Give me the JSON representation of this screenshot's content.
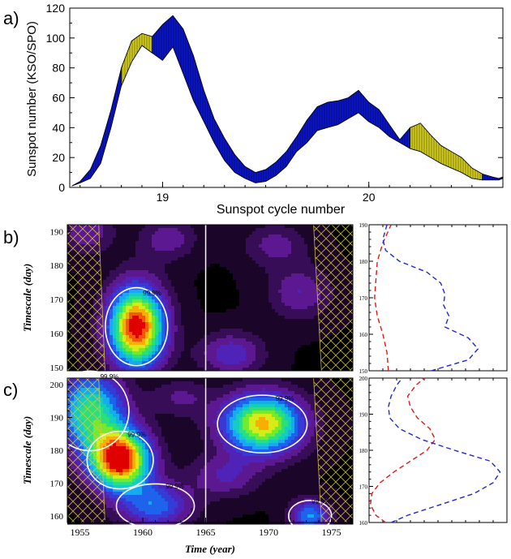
{
  "chart_data": [
    {
      "type": "area",
      "panel_label": "a)",
      "ylabel": "Sunspot number (KSO/SPO)",
      "xlabel": "Sunspot cycle number",
      "xticks": [
        "19",
        "20"
      ],
      "yticks": [
        "0",
        "20",
        "40",
        "60",
        "80",
        "100",
        "120"
      ],
      "ylim": [
        0,
        120
      ],
      "xlim": [
        18.55,
        20.65
      ],
      "colors": {
        "band": "#0a14c8",
        "highlight": "#d2cc1e",
        "outline": "#000000"
      },
      "x": [
        18.56,
        18.6,
        18.65,
        18.7,
        18.75,
        18.8,
        18.85,
        18.9,
        18.95,
        19.0,
        19.05,
        19.1,
        19.15,
        19.2,
        19.25,
        19.3,
        19.35,
        19.4,
        19.45,
        19.5,
        19.55,
        19.6,
        19.65,
        19.7,
        19.75,
        19.8,
        19.85,
        19.9,
        19.95,
        20.0,
        20.05,
        20.1,
        20.15,
        20.2,
        20.25,
        20.3,
        20.35,
        20.4,
        20.45,
        20.5,
        20.55,
        20.6,
        20.63,
        20.65
      ],
      "upper": [
        1,
        4,
        12,
        28,
        52,
        80,
        98,
        103,
        101,
        109,
        115,
        106,
        88,
        65,
        46,
        33,
        22,
        14,
        10,
        12,
        17,
        24,
        34,
        45,
        54,
        57,
        58,
        60,
        65,
        57,
        52,
        42,
        32,
        40,
        43,
        35,
        28,
        24,
        20,
        13,
        9,
        7,
        6,
        7
      ],
      "lower": [
        1,
        3,
        6,
        16,
        40,
        68,
        84,
        95,
        90,
        85,
        94,
        76,
        58,
        44,
        30,
        18,
        10,
        6,
        3,
        4,
        8,
        14,
        24,
        30,
        38,
        40,
        42,
        46,
        50,
        44,
        40,
        34,
        30,
        26,
        24,
        20,
        16,
        13,
        10,
        6,
        5,
        5,
        5,
        6
      ],
      "highlight_ranges": [
        [
          18.8,
          18.95
        ],
        [
          20.2,
          20.55
        ]
      ]
    },
    {
      "type": "heatmap",
      "panel_label": "b)",
      "ylabel": "Timescale (day)",
      "yticks": [
        "150",
        "160",
        "170",
        "180",
        "190"
      ],
      "ylim": [
        149,
        192
      ],
      "xlim": [
        1954.0,
        1976.7
      ],
      "marker_year": 1965,
      "contour_label": "99.9%",
      "blobs": [
        {
          "x": 1959.5,
          "y": 162,
          "sx": 1.6,
          "sy": 8.5,
          "amp": 1.0
        },
        {
          "x": 1967.0,
          "y": 154,
          "sx": 1.8,
          "sy": 4.5,
          "amp": 0.28
        },
        {
          "x": 1972.5,
          "y": 172,
          "sx": 1.8,
          "sy": 5.5,
          "amp": 0.22
        },
        {
          "x": 1955.5,
          "y": 190,
          "sx": 1.5,
          "sy": 4.5,
          "amp": 0.22
        },
        {
          "x": 1962.0,
          "y": 188,
          "sx": 1.6,
          "sy": 4.5,
          "amp": 0.2
        },
        {
          "x": 1970.5,
          "y": 186,
          "sx": 1.8,
          "sy": 4.5,
          "amp": 0.18
        }
      ],
      "side_profile": {
        "ylim": [
          150,
          190
        ],
        "yticks": [
          "150",
          "160",
          "170",
          "180",
          "190"
        ],
        "red_dashed": {
          "y": [
            150,
            155,
            160,
            165,
            170,
            175,
            180,
            185,
            190
          ],
          "x": [
            0.14,
            0.13,
            0.1,
            0.06,
            0.04,
            0.05,
            0.06,
            0.1,
            0.16
          ]
        },
        "blue_dashed": {
          "y": [
            150,
            153,
            156,
            159,
            162,
            165,
            168,
            171,
            174,
            177,
            180,
            183,
            186,
            190
          ],
          "x": [
            0.45,
            0.72,
            0.79,
            0.72,
            0.55,
            0.58,
            0.54,
            0.55,
            0.52,
            0.42,
            0.22,
            0.12,
            0.1,
            0.13
          ]
        }
      }
    },
    {
      "type": "heatmap",
      "panel_label": "c)",
      "ylabel": "Timescale (day)",
      "xlabel": "Time (year)",
      "xticks": [
        "1955",
        "1960",
        "1965",
        "1970",
        "1975"
      ],
      "yticks": [
        "160",
        "170",
        "180",
        "190",
        "200"
      ],
      "ylim": [
        158,
        202
      ],
      "xlim": [
        1954.0,
        1976.7
      ],
      "marker_year": 1965,
      "contour_label": "99.9%",
      "blobs": [
        {
          "x": 1958.2,
          "y": 177,
          "sx": 1.7,
          "sy": 6.5,
          "amp": 1.0
        },
        {
          "x": 1955.8,
          "y": 192,
          "sx": 2.0,
          "sy": 9.0,
          "amp": 0.6
        },
        {
          "x": 1969.5,
          "y": 188,
          "sx": 2.3,
          "sy": 6.5,
          "amp": 0.82
        },
        {
          "x": 1961.0,
          "y": 163,
          "sx": 2.0,
          "sy": 5.0,
          "amp": 0.4
        },
        {
          "x": 1973.3,
          "y": 160,
          "sx": 1.1,
          "sy": 3.5,
          "amp": 0.45
        },
        {
          "x": 1966.5,
          "y": 172,
          "sx": 2.0,
          "sy": 4.5,
          "amp": 0.22
        },
        {
          "x": 1963.0,
          "y": 196,
          "sx": 1.6,
          "sy": 4.0,
          "amp": 0.16
        }
      ],
      "side_profile": {
        "ylim": [
          160,
          200
        ],
        "yticks": [
          "160",
          "170",
          "180",
          "190",
          "200"
        ],
        "red_dashed": {
          "y": [
            160,
            162,
            165,
            168,
            171,
            174,
            177,
            180,
            183,
            186,
            189,
            192,
            195,
            198,
            200
          ],
          "x": [
            0.12,
            0.05,
            0.01,
            0.02,
            0.08,
            0.18,
            0.3,
            0.42,
            0.48,
            0.44,
            0.35,
            0.3,
            0.28,
            0.34,
            0.4
          ]
        },
        "blue_dashed": {
          "y": [
            160,
            162,
            165,
            168,
            171,
            174,
            177,
            180,
            183,
            186,
            189,
            192,
            195,
            198,
            200
          ],
          "x": [
            0.16,
            0.28,
            0.52,
            0.76,
            0.9,
            0.95,
            0.88,
            0.62,
            0.38,
            0.22,
            0.15,
            0.14,
            0.16,
            0.2,
            0.24
          ]
        }
      }
    }
  ]
}
